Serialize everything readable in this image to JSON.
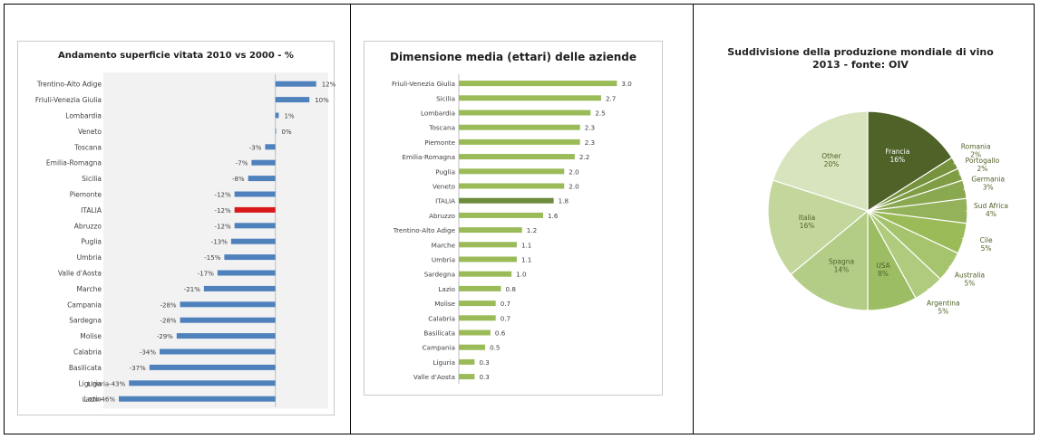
{
  "chart_data": [
    {
      "type": "bar",
      "orientation": "horizontal",
      "title": "Andamento superficie vitata 2010 vs 2000 - %",
      "categories": [
        "Trentino-Alto Adige",
        "Friuli-Venezia Giulia",
        "Lombardia",
        "Veneto",
        "Toscana",
        "Emilia-Romagna",
        "Sicilia",
        "Piemonte",
        "ITALIA",
        "Abruzzo",
        "Puglia",
        "Umbria",
        "Valle d'Aosta",
        "Marche",
        "Campania",
        "Sardegna",
        "Molise",
        "Calabria",
        "Basilicata",
        "Liguria",
        "Lazio"
      ],
      "values": [
        12,
        10,
        1,
        0,
        -3,
        -7,
        -8,
        -12,
        -12,
        -12,
        -13,
        -15,
        -17,
        -21,
        -28,
        -28,
        -29,
        -34,
        -37,
        -43,
        -46
      ],
      "data_labels": [
        "12%",
        "10%",
        "1%",
        "0%",
        "-3%",
        "-7%",
        "-8%",
        "-12%",
        "-12%",
        "-12%",
        "-13%",
        "-15%",
        "-17%",
        "-21%",
        "-28%",
        "-28%",
        "-29%",
        "-34%",
        "-37%",
        "Liguria-43%",
        "Lazio-46%"
      ],
      "colors": {
        "bar": "#4f81bd",
        "highlight": "#d7191c"
      },
      "highlight_category": "ITALIA",
      "xlim": [
        -50,
        15
      ]
    },
    {
      "type": "bar",
      "orientation": "horizontal",
      "title": "Dimensione media (ettari) delle aziende",
      "categories": [
        "Friuli-Venezia Giulia",
        "Sicilia",
        "Lombardia",
        "Toscana",
        "Piemonte",
        "Emilia-Romagna",
        "Puglia",
        "Veneto",
        "ITALIA",
        "Abruzzo",
        "Trentino-Alto Adige",
        "Marche",
        "Umbria",
        "Sardegna",
        "Lazio",
        "Molise",
        "Calabria",
        "Basilicata",
        "Campania",
        "Liguria",
        "Valle d'Aosta"
      ],
      "values": [
        3.0,
        2.7,
        2.5,
        2.3,
        2.3,
        2.2,
        2.0,
        2.0,
        1.8,
        1.6,
        1.2,
        1.1,
        1.1,
        1.0,
        0.8,
        0.7,
        0.7,
        0.6,
        0.5,
        0.3,
        0.3
      ],
      "data_labels": [
        "3.0",
        "2.7",
        "2.5",
        "2.3",
        "2.3",
        "2.2",
        "2.0",
        "2.0",
        "1.8",
        "1.6",
        "1.2",
        "1.1",
        "1.1",
        "1.0",
        "0.8",
        "0.7",
        "0.7",
        "0.6",
        "0.5",
        "0.3",
        "0.3"
      ],
      "colors": {
        "bar": "#9bbb59",
        "highlight": "#6e8b3d"
      },
      "highlight_category": "ITALIA",
      "xlim": [
        0,
        3.2
      ]
    },
    {
      "type": "pie",
      "title": "Suddivisione della produzione mondiale di vino",
      "subtitle": "2013 - fonte: OIV",
      "slices": [
        {
          "name": "Francia",
          "value": 16,
          "label": "Francia\n16%",
          "color": "#4f6228"
        },
        {
          "name": "Romania",
          "value": 2,
          "label": "Romania\n2%",
          "color": "#76923c"
        },
        {
          "name": "Portogallo",
          "value": 2,
          "label": "Portogallo\n2%",
          "color": "#7f9d45"
        },
        {
          "name": "Germania",
          "value": 3,
          "label": "Germania\n3%",
          "color": "#8aa84f"
        },
        {
          "name": "Sud Africa",
          "value": 4,
          "label": "Sud Africa\n4%",
          "color": "#93b25a"
        },
        {
          "name": "Cile",
          "value": 5,
          "label": "Cile\n5%",
          "color": "#9bbb59"
        },
        {
          "name": "Australia",
          "value": 5,
          "label": "Australia\n5%",
          "color": "#a6c46e"
        },
        {
          "name": "Argentina",
          "value": 5,
          "label": "Argentina\n5%",
          "color": "#b0cb7d"
        },
        {
          "name": "USA",
          "value": 8,
          "label": "USA\n8%",
          "color": "#9dbd64"
        },
        {
          "name": "Spagna",
          "value": 14,
          "label": "Spagna\n14%",
          "color": "#b3cc86"
        },
        {
          "name": "Italia",
          "value": 16,
          "label": "Italia\n16%",
          "color": "#c3d69b"
        },
        {
          "name": "Other",
          "value": 20,
          "label": "Other\n20%",
          "color": "#d7e4bd"
        }
      ]
    }
  ]
}
